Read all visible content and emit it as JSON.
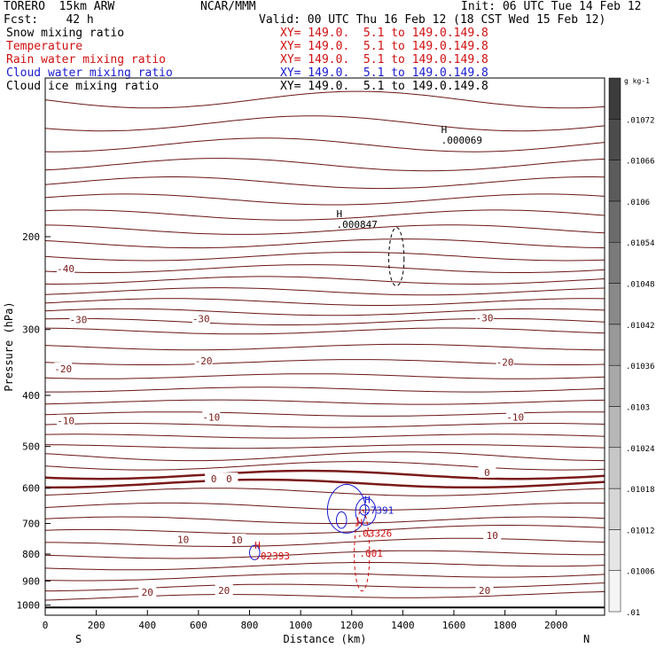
{
  "header": {
    "model": "TORERO  15km ARW",
    "center": "NCAR/MMM",
    "init": "Init: 06 UTC Tue 14 Feb 12",
    "fcst": "Fcst:    42 h",
    "valid": "Valid: 00 UTC Thu 16 Feb 12 (18 CST Wed 15 Feb 12)"
  },
  "legend": [
    {
      "label": "Snow mixing ratio",
      "xy": "XY= 149.0.  5.1 to 149.0.149.8",
      "color": "#000000"
    },
    {
      "label": "Temperature",
      "xy": "XY= 149.0.  5.1 to 149.0.149.8",
      "color": "#d01010"
    },
    {
      "label": "Rain water mixing ratio",
      "xy": "XY= 149.0.  5.1 to 149.0.149.8",
      "color": "#d01010"
    },
    {
      "label": "Cloud water mixing ratio",
      "xy": "XY= 149.0.  5.1 to 149.0.149.8",
      "color": "#1a1ad0"
    },
    {
      "label": "Cloud ice mixing ratio",
      "xy": "XY= 149.0.  5.1 to 149.0.149.8",
      "color": "#000000"
    }
  ],
  "chart_data": {
    "type": "contour",
    "xlabel": "Distance (km)",
    "ylabel": "Pressure (hPa)",
    "x_ticks": [
      0,
      200,
      400,
      600,
      800,
      1000,
      1200,
      1400,
      1600,
      1800,
      2000
    ],
    "y_ticks": [
      200,
      300,
      400,
      500,
      600,
      700,
      800,
      900,
      1000
    ],
    "xlim": [
      0,
      2190
    ],
    "ylim": [
      1045,
      100
    ],
    "y_scale": "log",
    "direction_left": "S",
    "direction_right": "N",
    "temperature_contour_labels": [
      {
        "x": 80,
        "p": 230,
        "text": "-40"
      },
      {
        "x": 130,
        "p": 287,
        "text": "-30"
      },
      {
        "x": 610,
        "p": 286,
        "text": "-30"
      },
      {
        "x": 1720,
        "p": 285,
        "text": "-30"
      },
      {
        "x": 70,
        "p": 356,
        "text": "-20"
      },
      {
        "x": 620,
        "p": 344,
        "text": "-20"
      },
      {
        "x": 1800,
        "p": 346,
        "text": "-20"
      },
      {
        "x": 80,
        "p": 447,
        "text": "-10"
      },
      {
        "x": 650,
        "p": 440,
        "text": "-10"
      },
      {
        "x": 1840,
        "p": 440,
        "text": "-10"
      },
      {
        "x": 660,
        "p": 576,
        "text": "0"
      },
      {
        "x": 720,
        "p": 576,
        "text": "0"
      },
      {
        "x": 1730,
        "p": 560,
        "text": "0"
      },
      {
        "x": 540,
        "p": 750,
        "text": "10"
      },
      {
        "x": 750,
        "p": 752,
        "text": "10"
      },
      {
        "x": 1750,
        "p": 738,
        "text": "10"
      },
      {
        "x": 400,
        "p": 945,
        "text": "20"
      },
      {
        "x": 700,
        "p": 937,
        "text": "20"
      },
      {
        "x": 1720,
        "p": 937,
        "text": "20"
      }
    ],
    "extrema_labels": [
      {
        "x": 1140,
        "p": 188,
        "mark": "H",
        "value": ".000847",
        "color": "#000000"
      },
      {
        "x": 1550,
        "p": 130,
        "mark": "H",
        "value": ".000069",
        "color": "#000000"
      },
      {
        "x": 1250,
        "p": 655,
        "mark": "H",
        "value": ".7391",
        "color": "#1a1ad0"
      },
      {
        "x": 1220,
        "p": 725,
        "mark": "H",
        "value": ".03326",
        "color": "#d01010"
      },
      {
        "x": 820,
        "p": 800,
        "mark": "H",
        "value": ".02393",
        "color": "#d01010"
      },
      {
        "x": 1230,
        "p": 790,
        "mark": "",
        "value": ".001",
        "color": "#d01010"
      }
    ],
    "colorbar": {
      "unit": "g kg-1",
      "ticks": [
        ".01",
        ".01006",
        ".01012",
        ".01018",
        ".01024",
        ".0103",
        ".01036",
        ".01042",
        ".01048",
        ".01054",
        ".0106",
        ".01066",
        ".01072"
      ]
    }
  }
}
